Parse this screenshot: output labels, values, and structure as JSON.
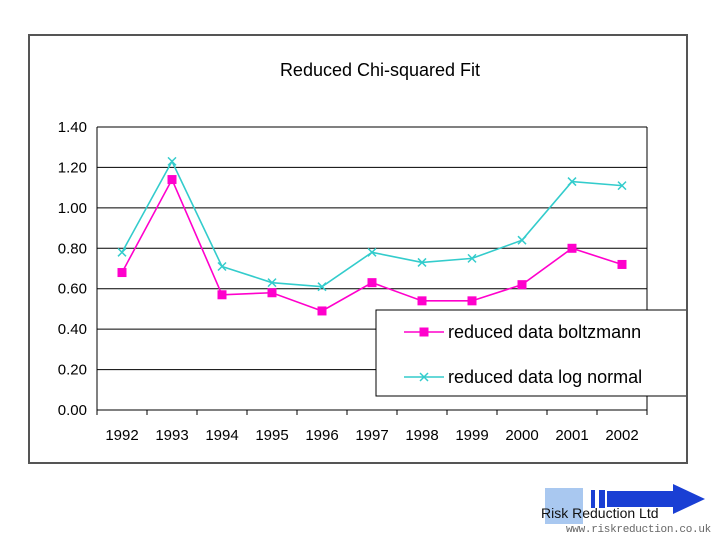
{
  "chart_data": {
    "type": "line",
    "title": "Reduced Chi-squared Fit",
    "categories": [
      "1992",
      "1993",
      "1994",
      "1995",
      "1996",
      "1997",
      "1998",
      "1999",
      "2000",
      "2001",
      "2002"
    ],
    "ylim": [
      0,
      1.4
    ],
    "ytick_labels": [
      "0.00",
      "0.20",
      "0.40",
      "0.60",
      "0.80",
      "1.00",
      "1.20",
      "1.40"
    ],
    "ytick_values": [
      0,
      0.2,
      0.4,
      0.6,
      0.8,
      1.0,
      1.2,
      1.4
    ],
    "grid": true,
    "legend_position": "lower-right",
    "series": [
      {
        "name": "reduced data boltzmann",
        "color": "#ff00cc",
        "marker": "square",
        "values": [
          0.68,
          1.14,
          0.57,
          0.58,
          0.49,
          0.63,
          0.54,
          0.54,
          0.62,
          0.8,
          0.72
        ]
      },
      {
        "name": "reduced data log normal",
        "color": "#33cccc",
        "marker": "x",
        "values": [
          0.78,
          1.23,
          0.71,
          0.63,
          0.61,
          0.78,
          0.73,
          0.75,
          0.84,
          1.13,
          1.11
        ]
      }
    ]
  },
  "branding": {
    "company": "Risk Reduction Ltd",
    "url": "www.riskreduction.co.uk",
    "arrow_color": "#1a3fd4",
    "box_color": "#a9c8f0"
  }
}
